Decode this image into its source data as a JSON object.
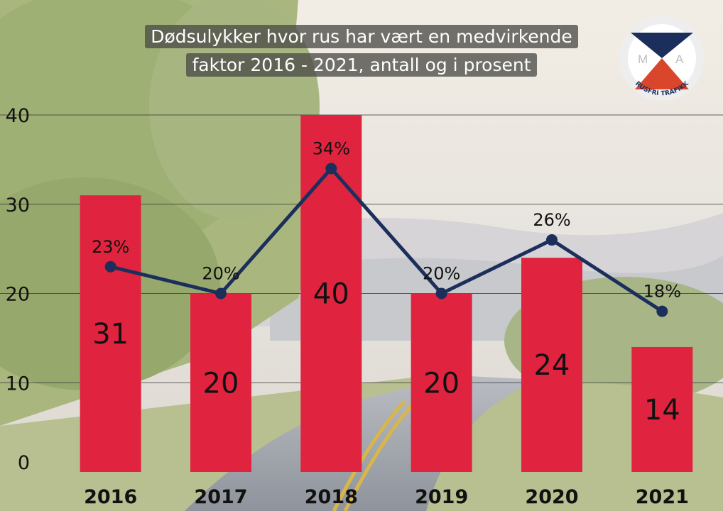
{
  "chart_data": {
    "type": "bar",
    "title_lines": [
      "Dødsulykker hvor rus har vært en medvirkende",
      "faktor 2016 - 2021, antall og i prosent"
    ],
    "categories": [
      "2016",
      "2017",
      "2018",
      "2019",
      "2020",
      "2021"
    ],
    "series": [
      {
        "type": "bar",
        "values": [
          31,
          20,
          40,
          20,
          24,
          14
        ],
        "labels": [
          "31",
          "20",
          "40",
          "20",
          "24",
          "14"
        ],
        "color": "#e0243f"
      },
      {
        "type": "line",
        "values": [
          23,
          20,
          34,
          20,
          26,
          18
        ],
        "labels": [
          "23%",
          "20%",
          "34%",
          "20%",
          "26%",
          "18%"
        ],
        "color": "#1c2f5c"
      }
    ],
    "yticks": [
      "0",
      "10",
      "20",
      "30",
      "40"
    ],
    "ylim": [
      0,
      40
    ],
    "grid": true,
    "xlabel": "",
    "ylabel": ""
  },
  "logo": {
    "text": "RUSFRI TRAFIKK",
    "letters": [
      "M",
      "A"
    ],
    "colors": {
      "navy": "#1c2f5c",
      "red": "#d9462c",
      "ring": "#bdbdbd"
    }
  }
}
